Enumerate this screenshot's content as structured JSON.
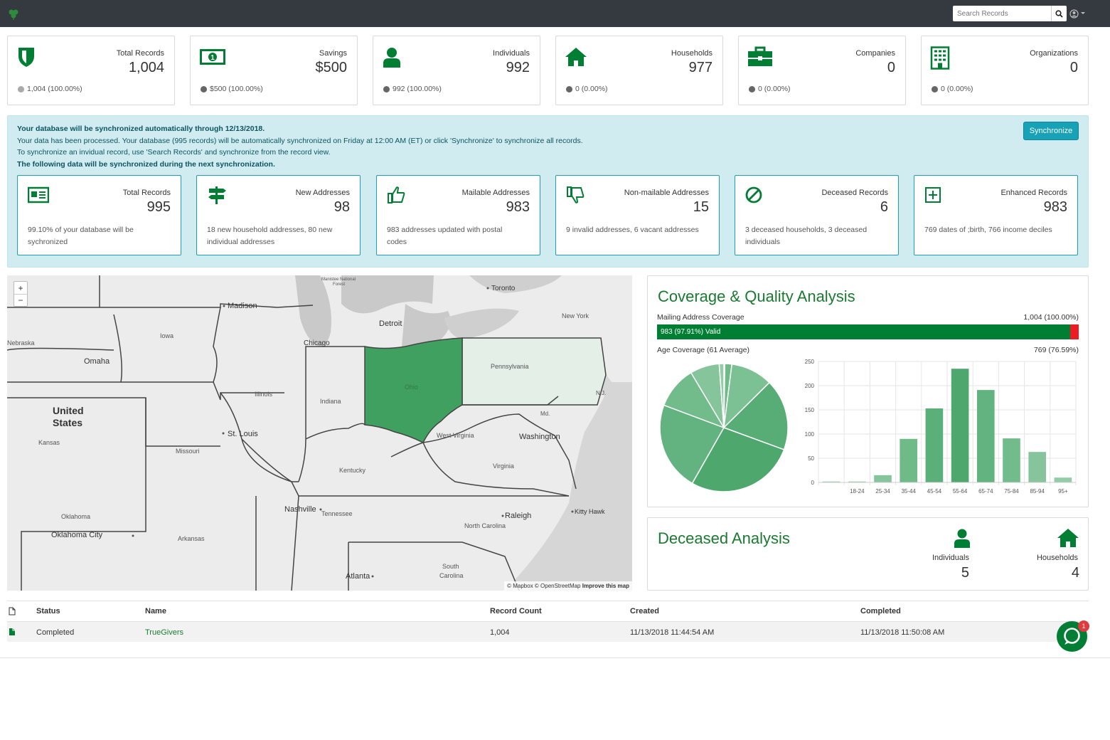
{
  "header": {
    "search_placeholder": "Search Records"
  },
  "stats": [
    {
      "icon": "shield-icon",
      "label": "Total Records",
      "value": "1,004",
      "foot": "1,004 (100.00%)",
      "dot_color": "#aaaaaa"
    },
    {
      "icon": "money-bill-icon",
      "label": "Savings",
      "value": "$500",
      "foot": "$500 (100.00%)",
      "dot_color": "#666666"
    },
    {
      "icon": "user-icon",
      "label": "Individuals",
      "value": "992",
      "foot": "992 (100.00%)",
      "dot_color": "#666666"
    },
    {
      "icon": "home-icon",
      "label": "Households",
      "value": "977",
      "foot": "0 (0.00%)",
      "dot_color": "#666666"
    },
    {
      "icon": "briefcase-icon",
      "label": "Companies",
      "value": "0",
      "foot": "0 (0.00%)",
      "dot_color": "#666666"
    },
    {
      "icon": "building-icon",
      "label": "Organizations",
      "value": "0",
      "foot": "0 (0.00%)",
      "dot_color": "#666666"
    }
  ],
  "sync": {
    "line1": "Your  database will be synchronized automatically through 12/13/2018.",
    "line2": "Your data has been processed. Your database (995 records) will be automatically synchronized on Friday at 12:00 AM (ET) or click 'Synchronize' to synchronize all records.",
    "line3": "To synchronize an invidual record, use 'Search Records' and synchronize from the record view.",
    "line4": "The following data will be synchronized  during the next synchronization.",
    "button": "Synchronize",
    "cards": [
      {
        "icon": "id-card-icon",
        "label": "Total Records",
        "value": "995",
        "desc": "99.10% of your database will be sychronized"
      },
      {
        "icon": "signpost-icon",
        "label": "New Addresses",
        "value": "98",
        "desc": "18 new household addresses, 80 new individual addresses"
      },
      {
        "icon": "thumbs-up-icon",
        "label": "Mailable Addresses",
        "value": "983",
        "desc": "983 addresses updated with postal codes"
      },
      {
        "icon": "thumbs-down-icon",
        "label": "Non-mailable Addresses",
        "value": "15",
        "desc": "9 invalid addresses, 6 vacant addresses"
      },
      {
        "icon": "ban-icon",
        "label": "Deceased Records",
        "value": "6",
        "desc": "3 deceased households, 3 deceased individuals"
      },
      {
        "icon": "plus-square-icon",
        "label": "Enhanced Records",
        "value": "983",
        "desc": "769 dates of ;birth, 766 income deciles"
      }
    ]
  },
  "map": {
    "zoom_in": "+",
    "zoom_out": "−",
    "attribution": "© Mapbox © OpenStreetMap",
    "improve": "Improve this map",
    "labels": [
      "Madison",
      "Detroit",
      "Toronto",
      "New York",
      "Chicago",
      "Iowa",
      "Nebraska",
      "Omaha",
      "Illinois",
      "Indiana",
      "Ohio",
      "Pennsylvania",
      "United",
      "States",
      "St. Louis",
      "Kansas",
      "Missouri",
      "West Virginia",
      "Washington",
      "Kentucky",
      "Virginia",
      "Md.",
      "N.J.",
      "Nashville",
      "Tennessee",
      "Raleigh",
      "Kitty Hawk",
      "North Carolina",
      "Oklahoma",
      "Oklahoma City",
      "Arkansas",
      "Atlanta",
      "South",
      "Carolina",
      "Manistee National",
      "Forest"
    ]
  },
  "coverage": {
    "title": "Coverage & Quality Analysis",
    "mailing_label": "Mailing Address Coverage",
    "mailing_total": "1,004 (100.00%)",
    "valid_text": "983 (97.91%) Valid",
    "valid_fraction": 0.9791,
    "age_label": "Age Coverage (61 Average)",
    "age_total": "769 (76.59%)"
  },
  "chart_data": [
    {
      "type": "pie",
      "title": "Age Coverage",
      "categories": [
        "18-24",
        "25-34",
        "35-44",
        "45-54",
        "55-64",
        "65-74",
        "75-84",
        "85-94",
        "95+"
      ],
      "values": [
        2,
        15,
        90,
        153,
        235,
        191,
        91,
        63,
        10
      ]
    },
    {
      "type": "bar",
      "title": "Age Coverage",
      "categories": [
        "",
        "18-24",
        "25-34",
        "35-44",
        "45-54",
        "55-64",
        "65-74",
        "75-84",
        "85-94",
        "95+"
      ],
      "values": [
        2,
        2,
        15,
        90,
        153,
        235,
        191,
        91,
        63,
        10
      ],
      "ylim": [
        0,
        250
      ],
      "yticks": [
        "0",
        "50",
        "100",
        "150",
        "200",
        "250"
      ],
      "grid": true
    }
  ],
  "deceased": {
    "title": "Deceased Analysis",
    "individuals_label": "Individuals",
    "individuals_value": "5",
    "households_label": "Households",
    "households_value": "4"
  },
  "table": {
    "headers": {
      "status": "Status",
      "name": "Name",
      "count": "Record Count",
      "created": "Created",
      "completed": "Completed"
    },
    "row": {
      "status": "Completed",
      "name": "TrueGivers",
      "count": "1,004",
      "created": "11/13/2018 11:44:54 AM",
      "completed": "11/13/2018 11:50:08 AM"
    }
  },
  "chat": {
    "badge": "1"
  },
  "colors": {
    "brand_green": "#007e33",
    "dark_bar": "#343a40",
    "info_bg": "#d1ecf1",
    "info_border": "#17a2b8",
    "invalid_red": "#ed1c24"
  }
}
